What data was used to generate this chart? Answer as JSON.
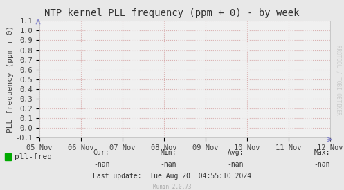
{
  "title": "NTP kernel PLL frequency (ppm + 0) - by week",
  "ylabel": "PLL frequency (ppm + 0)",
  "background_color": "#e8e8e8",
  "plot_background_color": "#f0f0f0",
  "grid_color": "#cc8888",
  "grid_alpha": 0.6,
  "ylim": [
    -0.1,
    1.1
  ],
  "yticks": [
    -0.1,
    0.0,
    0.1,
    0.2,
    0.3,
    0.4,
    0.5,
    0.6,
    0.7,
    0.8,
    0.9,
    1.0,
    1.1
  ],
  "xtick_labels": [
    "05 Nov",
    "06 Nov",
    "07 Nov",
    "08 Nov",
    "09 Nov",
    "10 Nov",
    "11 Nov",
    "12 Nov"
  ],
  "legend_label": "pll-freq",
  "legend_color": "#00aa00",
  "cur_val": "-nan",
  "min_val": "-nan",
  "avg_val": "-nan",
  "max_val": "-nan",
  "last_update": "Last update:  Tue Aug 20  04:55:10 2024",
  "munin_version": "Munin 2.0.73",
  "rrdtool_label": "RRDTOOL / TOBI OETIKER",
  "title_fontsize": 10,
  "axis_label_fontsize": 8,
  "tick_fontsize": 7.5,
  "legend_fontsize": 8,
  "footer_fontsize": 7,
  "watermark_fontsize": 5.5,
  "rrdtool_fontsize": 5.5
}
